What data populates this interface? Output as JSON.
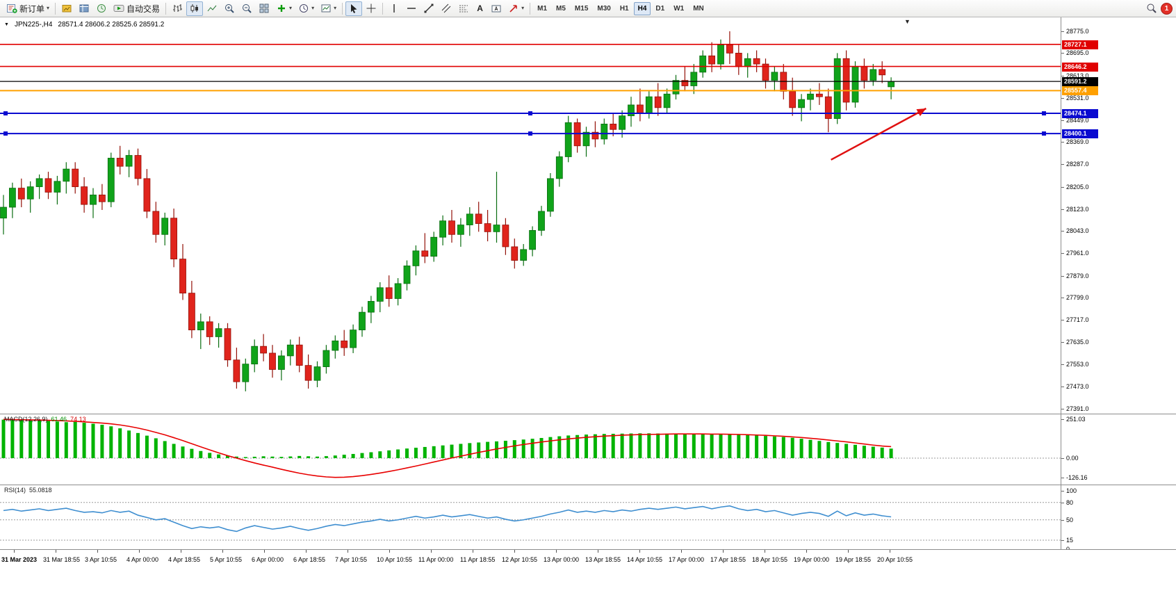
{
  "toolbar": {
    "new_order_label": "新订单",
    "auto_trading_label": "自动交易",
    "text_tool_label": "A",
    "timeframes": [
      "M1",
      "M5",
      "M15",
      "M30",
      "H1",
      "H4",
      "D1",
      "W1",
      "MN"
    ],
    "active_timeframe": "H4",
    "notification_badge": "1",
    "icons": [
      "new-order-icon",
      "market-watch-icon",
      "data-window-icon",
      "strategy-tester-icon",
      "autotrading-icon",
      "bar-chart-icon",
      "candlestick-icon",
      "line-chart-icon",
      "zoom-in-icon",
      "zoom-out-icon",
      "tile-windows-icon",
      "indicators-icon",
      "periods-clock-icon",
      "template-icon",
      "cursor-icon",
      "crosshair-icon",
      "vertical-line-icon",
      "horizontal-line-icon",
      "trendline-icon",
      "channel-icon",
      "fibonacci-icon",
      "text-icon",
      "text-label-icon",
      "arrows-tool-icon",
      "search-icon"
    ]
  },
  "chart": {
    "symbol_period": "JPN225-,H4",
    "ohlc_line": "28571.4 28606.2 28525.6 28591.2"
  },
  "chart_data": {
    "type": "candlestick",
    "symbol": "JPN225-",
    "period": "H4",
    "current_bar": {
      "open": 28571.4,
      "high": 28606.2,
      "low": 28525.6,
      "close": 28591.2
    },
    "bull_color": "#10a31a",
    "bull_stroke": "#0a6d10",
    "bear_color": "#e0241c",
    "bear_stroke": "#931008",
    "price_axis": [
      "28775.0",
      "28695.0",
      "28613.0",
      "28531.0",
      "28449.0",
      "28369.0",
      "28287.0",
      "28205.0",
      "28123.0",
      "28043.0",
      "27961.0",
      "27879.0",
      "27799.0",
      "27717.0",
      "27635.0",
      "27553.0",
      "27473.0",
      "27391.0"
    ],
    "time_labels": [
      "31 Mar 2023",
      "31 Mar 18:55",
      "3 Apr 10:55",
      "4 Apr 00:00",
      "4 Apr 18:55",
      "5 Apr 10:55",
      "6 Apr 00:00",
      "6 Apr 18:55",
      "7 Apr 10:55",
      "10 Apr 10:55",
      "11 Apr 00:00",
      "11 Apr 18:55",
      "12 Apr 10:55",
      "13 Apr 00:00",
      "13 Apr 18:55",
      "14 Apr 10:55",
      "17 Apr 00:00",
      "17 Apr 18:55",
      "18 Apr 10:55",
      "19 Apr 00:00",
      "19 Apr 18:55",
      "20 Apr 10:55"
    ],
    "hlines": [
      {
        "price": 28727.1,
        "label": "28727.1",
        "color": "#e00000",
        "width": 1.6,
        "selected": false
      },
      {
        "price": 28646.2,
        "label": "28646.2",
        "color": "#e00000",
        "width": 1.6,
        "selected": false
      },
      {
        "price": 28591.2,
        "label": "28591.2",
        "color": "#000000",
        "width": 1.2,
        "selected": false
      },
      {
        "price": 28557.4,
        "label": "28557.4",
        "color": "#ffa000",
        "width": 2,
        "selected": false
      },
      {
        "price": 28474.1,
        "label": "28474.1",
        "color": "#0a0ad0",
        "width": 2,
        "selected": true
      },
      {
        "price": 28400.1,
        "label": "28400.1",
        "color": "#0a0ad0",
        "width": 2,
        "selected": true
      }
    ],
    "arrow": {
      "from_index": 92.3,
      "from_price": 28304,
      "to_index": 102.9,
      "to_price": 28492,
      "color": "#e01010"
    },
    "candles": [
      [
        28090,
        28175,
        28030,
        28130
      ],
      [
        28130,
        28220,
        28090,
        28200
      ],
      [
        28200,
        28235,
        28130,
        28160
      ],
      [
        28160,
        28225,
        28110,
        28205
      ],
      [
        28205,
        28250,
        28160,
        28235
      ],
      [
        28235,
        28260,
        28160,
        28185
      ],
      [
        28185,
        28245,
        28140,
        28225
      ],
      [
        28225,
        28295,
        28180,
        28270
      ],
      [
        28270,
        28295,
        28180,
        28205
      ],
      [
        28205,
        28240,
        28110,
        28140
      ],
      [
        28140,
        28200,
        28090,
        28175
      ],
      [
        28175,
        28215,
        28120,
        28150
      ],
      [
        28150,
        28330,
        28130,
        28310
      ],
      [
        28310,
        28355,
        28250,
        28280
      ],
      [
        28280,
        28340,
        28240,
        28320
      ],
      [
        28320,
        28345,
        28210,
        28235
      ],
      [
        28235,
        28270,
        28090,
        28115
      ],
      [
        28115,
        28150,
        28000,
        28030
      ],
      [
        28030,
        28110,
        27990,
        28090
      ],
      [
        28090,
        28125,
        27910,
        27940
      ],
      [
        27940,
        27995,
        27790,
        27815
      ],
      [
        27815,
        27860,
        27650,
        27680
      ],
      [
        27680,
        27740,
        27610,
        27710
      ],
      [
        27710,
        27730,
        27625,
        27655
      ],
      [
        27655,
        27705,
        27615,
        27685
      ],
      [
        27685,
        27705,
        27545,
        27570
      ],
      [
        27570,
        27615,
        27465,
        27490
      ],
      [
        27490,
        27575,
        27455,
        27555
      ],
      [
        27555,
        27645,
        27525,
        27620
      ],
      [
        27620,
        27665,
        27565,
        27595
      ],
      [
        27595,
        27625,
        27505,
        27535
      ],
      [
        27535,
        27605,
        27495,
        27585
      ],
      [
        27585,
        27645,
        27550,
        27625
      ],
      [
        27625,
        27655,
        27525,
        27550
      ],
      [
        27550,
        27590,
        27465,
        27495
      ],
      [
        27495,
        27565,
        27470,
        27545
      ],
      [
        27545,
        27625,
        27520,
        27605
      ],
      [
        27605,
        27660,
        27575,
        27640
      ],
      [
        27640,
        27680,
        27585,
        27615
      ],
      [
        27615,
        27700,
        27595,
        27680
      ],
      [
        27680,
        27765,
        27655,
        27745
      ],
      [
        27745,
        27805,
        27705,
        27785
      ],
      [
        27785,
        27855,
        27745,
        27835
      ],
      [
        27835,
        27880,
        27765,
        27795
      ],
      [
        27795,
        27870,
        27770,
        27850
      ],
      [
        27850,
        27935,
        27825,
        27915
      ],
      [
        27915,
        27990,
        27880,
        27970
      ],
      [
        27970,
        28035,
        27925,
        27950
      ],
      [
        27950,
        28040,
        27930,
        28020
      ],
      [
        28020,
        28100,
        27990,
        28080
      ],
      [
        28080,
        28120,
        28000,
        28030
      ],
      [
        28030,
        28090,
        27985,
        28065
      ],
      [
        28065,
        28130,
        28025,
        28105
      ],
      [
        28105,
        28150,
        28040,
        28070
      ],
      [
        28070,
        28120,
        28005,
        28040
      ],
      [
        28040,
        28260,
        28000,
        28065
      ],
      [
        28065,
        28090,
        27955,
        27985
      ],
      [
        27985,
        28015,
        27905,
        27935
      ],
      [
        27935,
        27995,
        27915,
        27975
      ],
      [
        27975,
        28060,
        27950,
        28045
      ],
      [
        28045,
        28135,
        28025,
        28115
      ],
      [
        28115,
        28255,
        28095,
        28235
      ],
      [
        28235,
        28335,
        28205,
        28315
      ],
      [
        28315,
        28465,
        28295,
        28440
      ],
      [
        28440,
        28455,
        28330,
        28355
      ],
      [
        28355,
        28425,
        28315,
        28405
      ],
      [
        28405,
        28445,
        28350,
        28380
      ],
      [
        28380,
        28455,
        28360,
        28435
      ],
      [
        28435,
        28475,
        28390,
        28415
      ],
      [
        28415,
        28485,
        28385,
        28465
      ],
      [
        28465,
        28535,
        28425,
        28505
      ],
      [
        28505,
        28565,
        28445,
        28475
      ],
      [
        28475,
        28555,
        28455,
        28535
      ],
      [
        28535,
        28585,
        28465,
        28495
      ],
      [
        28495,
        28565,
        28475,
        28545
      ],
      [
        28545,
        28615,
        28525,
        28595
      ],
      [
        28595,
        28645,
        28555,
        28575
      ],
      [
        28575,
        28655,
        28545,
        28625
      ],
      [
        28625,
        28705,
        28605,
        28685
      ],
      [
        28685,
        28735,
        28625,
        28655
      ],
      [
        28655,
        28745,
        28635,
        28725
      ],
      [
        28725,
        28775,
        28655,
        28695
      ],
      [
        28695,
        28725,
        28615,
        28645
      ],
      [
        28645,
        28695,
        28605,
        28675
      ],
      [
        28675,
        28705,
        28625,
        28655
      ],
      [
        28655,
        28675,
        28565,
        28595
      ],
      [
        28595,
        28645,
        28555,
        28625
      ],
      [
        28625,
        28655,
        28525,
        28555
      ],
      [
        28555,
        28605,
        28465,
        28495
      ],
      [
        28495,
        28545,
        28445,
        28525
      ],
      [
        28525,
        28565,
        28485,
        28545
      ],
      [
        28545,
        28585,
        28505,
        28535
      ],
      [
        28535,
        28565,
        28405,
        28455
      ],
      [
        28455,
        28695,
        28435,
        28675
      ],
      [
        28675,
        28705,
        28485,
        28515
      ],
      [
        28515,
        28665,
        28495,
        28645
      ],
      [
        28645,
        28675,
        28565,
        28595
      ],
      [
        28595,
        28655,
        28575,
        28635
      ],
      [
        28635,
        28665,
        28585,
        28615
      ],
      [
        28571.4,
        28606.2,
        28525.6,
        28591.2
      ]
    ],
    "macd": {
      "name": "MACD(12,26,9)",
      "main_value": "61.46",
      "signal_value": "74.13",
      "axis": [
        "251.03",
        "0.00",
        "-126.16"
      ],
      "hist_color": "#00b300",
      "signal_color": "#e80000",
      "histogram": [
        248,
        250,
        246,
        243,
        246,
        240,
        236,
        232,
        235,
        228,
        222,
        215,
        205,
        192,
        178,
        162,
        145,
        128,
        110,
        92,
        75,
        60,
        46,
        34,
        24,
        16,
        10,
        7,
        9,
        12,
        10,
        8,
        11,
        14,
        12,
        10,
        13,
        17,
        22,
        27,
        33,
        38,
        44,
        50,
        56,
        62,
        67,
        72,
        77,
        82,
        87,
        92,
        97,
        101,
        105,
        108,
        112,
        116,
        120,
        125,
        130,
        136,
        141,
        146,
        149,
        152,
        154,
        156,
        157,
        158,
        159,
        160,
        160,
        159,
        158,
        157,
        156,
        155,
        155,
        154,
        153,
        152,
        150,
        148,
        146,
        143,
        140,
        136,
        131,
        125,
        118,
        111,
        104,
        98,
        92,
        86,
        80,
        74,
        68,
        61.46
      ],
      "signal": [
        250,
        249,
        248,
        247,
        246,
        244,
        242,
        240,
        237,
        234,
        230,
        226,
        221,
        214,
        205,
        194,
        181,
        166,
        150,
        132,
        113,
        93,
        73,
        53,
        34,
        16,
        0,
        -16,
        -31,
        -45,
        -58,
        -72,
        -85,
        -97,
        -107,
        -115,
        -121,
        -124,
        -123,
        -119,
        -113,
        -105,
        -96,
        -86,
        -75,
        -63,
        -51,
        -38,
        -25,
        -12,
        1,
        13,
        25,
        37,
        48,
        59,
        69,
        79,
        88,
        96,
        104,
        111,
        118,
        124,
        129,
        134,
        138,
        142,
        145,
        148,
        150,
        152,
        153,
        154,
        155,
        156,
        156,
        156,
        156,
        155,
        155,
        154,
        153,
        151,
        149,
        147,
        144,
        141,
        137,
        133,
        128,
        123,
        117,
        111,
        105,
        98,
        91,
        84,
        78,
        74.13
      ]
    },
    "rsi": {
      "name": "RSI(14)",
      "value_label": "55.0818",
      "color": "#3e8ed0",
      "levels": [
        "100",
        "80",
        "50",
        "15",
        "0"
      ],
      "values": [
        66,
        68,
        65,
        67,
        69,
        66,
        68,
        70,
        66,
        63,
        64,
        62,
        66,
        63,
        65,
        58,
        54,
        50,
        52,
        46,
        40,
        35,
        38,
        36,
        38,
        33,
        30,
        36,
        40,
        37,
        34,
        36,
        39,
        35,
        32,
        35,
        39,
        42,
        40,
        43,
        46,
        48,
        51,
        48,
        50,
        53,
        56,
        53,
        55,
        58,
        55,
        57,
        59,
        56,
        53,
        55,
        51,
        48,
        50,
        53,
        56,
        60,
        63,
        67,
        63,
        65,
        63,
        66,
        64,
        67,
        65,
        68,
        70,
        68,
        70,
        72,
        69,
        71,
        73,
        69,
        72,
        74,
        69,
        66,
        68,
        64,
        66,
        62,
        58,
        61,
        63,
        61,
        56,
        65,
        57,
        62,
        58,
        60,
        57,
        55.08
      ]
    }
  }
}
